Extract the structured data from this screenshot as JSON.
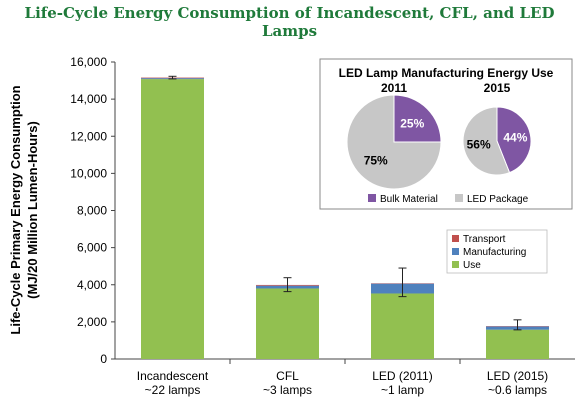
{
  "page": {
    "title": "Life-Cycle Energy Consumption of Incandescent, CFL, and LED Lamps"
  },
  "chart_data": [
    {
      "type": "bar",
      "stacked": true,
      "ylabel": "Life-Cycle Primary Energy Consumption (MJ/20 Million Lumen-Hours)",
      "ylabel_lines": [
        "Life-Cycle Primary Energy Consumption",
        "(MJ/20 Million Lumen-Hours)"
      ],
      "ylim": [
        0,
        16000
      ],
      "yticks": [
        0,
        2000,
        4000,
        6000,
        8000,
        10000,
        12000,
        14000,
        16000
      ],
      "ytick_labels": [
        "0",
        "2,000",
        "4,000",
        "6,000",
        "8,000",
        "10,000",
        "12,000",
        "14,000",
        "16,000"
      ],
      "grid": false,
      "categories": [
        [
          "Incandescent",
          "~22 lamps"
        ],
        [
          "CFL",
          "~3 lamps"
        ],
        [
          "LED (2011)",
          "~1 lamp"
        ],
        [
          "LED (2015)",
          "~0.6 lamps"
        ]
      ],
      "series": [
        {
          "name": "Use",
          "color": "#92c050",
          "values": [
            15080,
            3800,
            3530,
            1580
          ]
        },
        {
          "name": "Manufacturing",
          "color": "#4f81bd",
          "values": [
            50,
            150,
            530,
            170
          ]
        },
        {
          "name": "Transport",
          "color": "#c0504d",
          "values": [
            30,
            40,
            20,
            20
          ]
        }
      ],
      "error_bars": [
        {
          "low": 15090,
          "high": 15230
        },
        {
          "low": 3630,
          "high": 4380
        },
        {
          "low": 3360,
          "high": 4900
        },
        {
          "low": 1570,
          "high": 2110
        }
      ],
      "legend": {
        "position": "right",
        "entries": [
          "Transport",
          "Manufacturing",
          "Use"
        ]
      }
    },
    {
      "type": "pie",
      "title": "LED Lamp Manufacturing Energy Use",
      "charts": [
        {
          "title": "2011",
          "slices": [
            {
              "name": "Bulk Material",
              "value": 25,
              "label": "25%"
            },
            {
              "name": "LED Package",
              "value": 75,
              "label": "75%"
            }
          ]
        },
        {
          "title": "2015",
          "slices": [
            {
              "name": "Bulk Material",
              "value": 44,
              "label": "44%"
            },
            {
              "name": "LED Package",
              "value": 56,
              "label": "56%"
            }
          ]
        }
      ],
      "legend": {
        "position": "bottom",
        "entries": [
          {
            "name": "Bulk Material",
            "color": "#7f56a3"
          },
          {
            "name": "LED Package",
            "color": "#c7c7c7"
          }
        ]
      }
    }
  ]
}
